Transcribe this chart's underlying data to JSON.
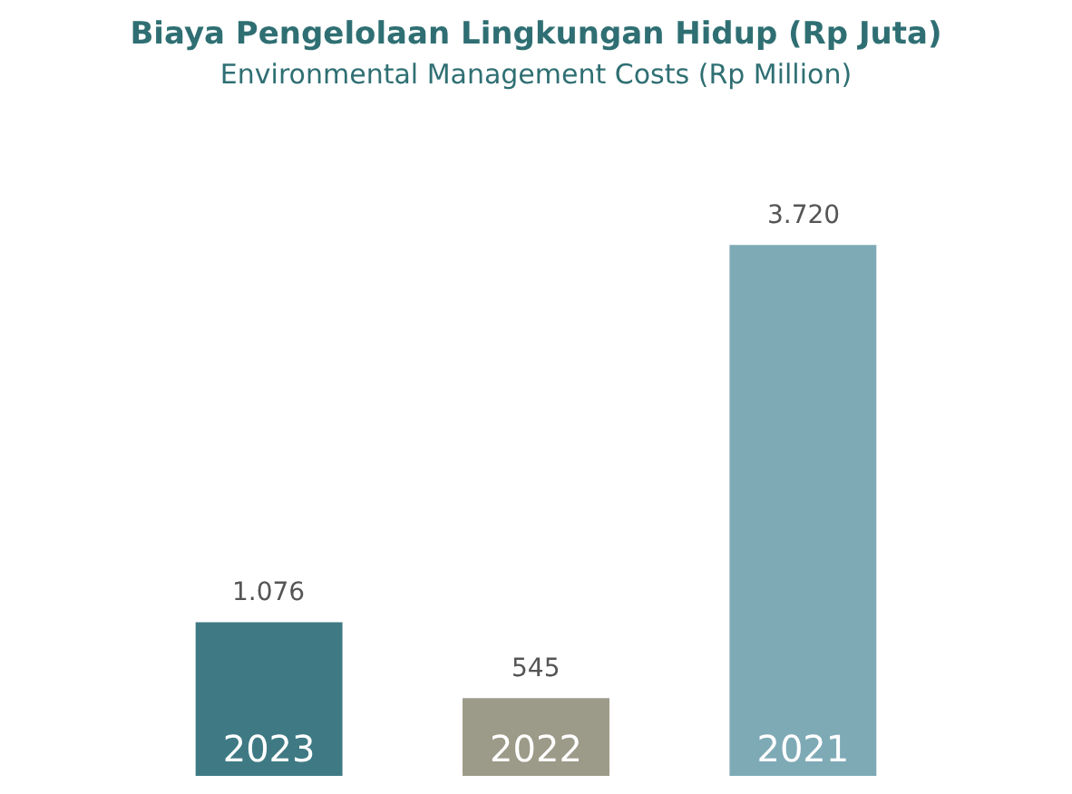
{
  "chart_data": {
    "type": "bar",
    "title": "Biaya Pengelolaan Lingkungan Hidup (Rp Juta)",
    "subtitle": "Environmental Management Costs (Rp Million)",
    "categories": [
      "2023",
      "2022",
      "2021"
    ],
    "values": [
      1076,
      545,
      3720
    ],
    "value_labels": [
      "1.076",
      "545",
      "3.720"
    ],
    "colors": [
      "#3f7a84",
      "#9c9a88",
      "#7eaab6"
    ],
    "tick_labels": false,
    "legend": false
  }
}
